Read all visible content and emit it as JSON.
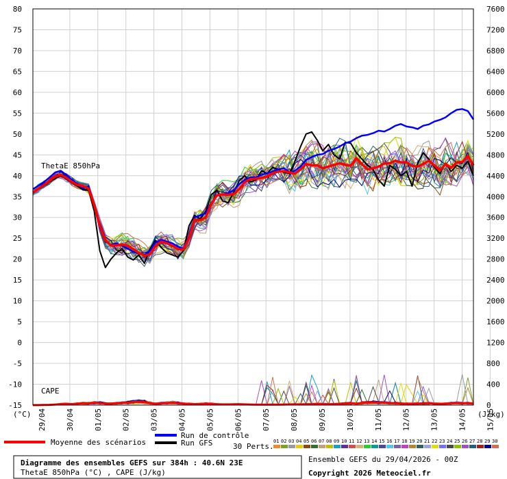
{
  "chart_data": {
    "type": "line",
    "title": "Diagramme des ensembles GEFS sur 384h : 40.6N 23E",
    "subtitle": "ThetaE 850hPa (°C) , CAPE (J/kg)",
    "ensemble_label": "Ensemble GEFS du 29/04/2026 - 00Z",
    "copyright": "Copyright 2026 Meteociel.fr",
    "left_axis": {
      "unit_label": "(°C)",
      "range": [
        -15,
        80
      ],
      "ticks": [
        80,
        75,
        70,
        65,
        60,
        55,
        50,
        45,
        40,
        35,
        30,
        25,
        20,
        15,
        10,
        5,
        0,
        -5,
        -10,
        -15
      ]
    },
    "right_axis": {
      "unit_label": "(J/kg)",
      "range": [
        0,
        7600
      ],
      "ticks": [
        7600,
        7200,
        6800,
        6400,
        6000,
        5600,
        5200,
        4800,
        4400,
        4000,
        3600,
        3200,
        2800,
        2400,
        2000,
        1600,
        1200,
        800,
        400,
        0
      ]
    },
    "x_labels": [
      "29/04",
      "30/04",
      "01/05",
      "02/05",
      "03/05",
      "04/05",
      "05/05",
      "06/05",
      "07/05",
      "08/05",
      "09/05",
      "10/05",
      "11/05",
      "12/05",
      "13/05",
      "14/05",
      "15/05"
    ],
    "x_steps": 65,
    "series_labels": {
      "thetae": "ThetaE 850hPa",
      "cape": "CAPE"
    },
    "legend": {
      "mean": "Moyenne des scénarios",
      "control": "Run de contrôle",
      "gfs": "Run GFS",
      "perts": "30 Perts."
    },
    "colors": {
      "mean": "#ff0000",
      "control": "#0000ff",
      "gfs": "#000000"
    },
    "perturbation_ids": [
      "01",
      "02",
      "03",
      "04",
      "05",
      "06",
      "07",
      "08",
      "09",
      "10",
      "11",
      "12",
      "13",
      "14",
      "15",
      "16",
      "17",
      "18",
      "19",
      "20",
      "21",
      "22",
      "23",
      "24",
      "25",
      "26",
      "27",
      "28",
      "29",
      "30"
    ],
    "perturbation_colors": [
      "#f08a24",
      "#7b9f2a",
      "#9a9a9a",
      "#e8d000",
      "#8a4a14",
      "#2f6f2f",
      "#c4a07a",
      "#c0c000",
      "#16a0c8",
      "#603090",
      "#d05050",
      "#d8b070",
      "#2ad02a",
      "#0a9a9a",
      "#4a4a9a",
      "#50c8e8",
      "#8060a0",
      "#c040c0",
      "#b08830",
      "#306060",
      "#a0a0e0",
      "#e0e000",
      "#7070ff",
      "#4a4a4a",
      "#90c000",
      "#a050c0",
      "#206080",
      "#a02020",
      "#000080",
      "#d07050"
    ],
    "mean_thetae": [
      36,
      36.9,
      37.8,
      38.8,
      39.8,
      40.2,
      39.5,
      38.5,
      37.8,
      37.5,
      36.9,
      33,
      28,
      24.5,
      23.3,
      23.3,
      23.5,
      23.2,
      22.4,
      21.5,
      20.8,
      21.2,
      23.2,
      24.2,
      23.8,
      23.2,
      22.4,
      22.3,
      25,
      29.5,
      29.3,
      30,
      33.2,
      35.3,
      35.5,
      35.4,
      35.6,
      36.8,
      38.5,
      39.2,
      39.3,
      39.5,
      39.8,
      40.6,
      41,
      41.1,
      40.8,
      40.5,
      41.5,
      42.8,
      42.5,
      42.5,
      41.8,
      42.2,
      42.6,
      43,
      42.6,
      42.4,
      44.2,
      42.8,
      41.5,
      41.8,
      42.2,
      42.9,
      43,
      43.6,
      43.2,
      43.2,
      42.4,
      42.2,
      42.8,
      43.6,
      42.5,
      41.3,
      42.8,
      41.9,
      43.2,
      43.3,
      44.7,
      42.5
    ],
    "control_thetae": [
      36.8,
      37.6,
      38.5,
      39.6,
      40.8,
      41.2,
      40.2,
      39,
      38,
      37,
      37.5,
      32.8,
      27.5,
      24.2,
      23.5,
      23.8,
      23.2,
      22.5,
      21.8,
      21.3,
      21,
      22,
      24,
      24.6,
      24.2,
      23.8,
      23,
      22.5,
      25.5,
      30,
      30.5,
      31,
      33.5,
      35.2,
      35.5,
      35.8,
      36.5,
      38,
      39,
      39.6,
      39.6,
      40.2,
      40.6,
      41,
      41.5,
      41.8,
      40.8,
      41.2,
      42.2,
      43.8,
      44.5,
      45,
      45.2,
      46,
      46.4,
      47,
      47.8,
      48.2,
      49,
      49.6,
      49.8,
      50.2,
      50.8,
      50.6,
      51.2,
      52,
      52.4,
      51.8,
      51.6,
      51.2,
      52,
      52.3,
      53,
      53.4,
      54,
      55,
      55.8,
      56,
      55.5,
      53.5
    ],
    "gfs_thetae": [
      36,
      36.8,
      37.6,
      38.5,
      39.3,
      40,
      39.2,
      38.3,
      37.5,
      36.6,
      36.5,
      31.5,
      22,
      18,
      20,
      21.5,
      22.5,
      20.5,
      19.8,
      21,
      19,
      22.5,
      24.5,
      22.8,
      21.5,
      21,
      20.5,
      22,
      28,
      30.5,
      29.6,
      31.5,
      35.5,
      36.5,
      34,
      33.5,
      36,
      38.8,
      40,
      38.5,
      39,
      41.2,
      40.5,
      42,
      41.5,
      40.8,
      40.5,
      43.5,
      47,
      50,
      50.5,
      48.5,
      46,
      47.5,
      45,
      44,
      48,
      47.8,
      45.5,
      44,
      42.5,
      41.5,
      39,
      37.5,
      42.5,
      41.5,
      40,
      41,
      37.5,
      43,
      45.5,
      44,
      42,
      40.5,
      43,
      41,
      42.5,
      41.8,
      43.5,
      40
    ],
    "mean_cape": [
      0,
      0,
      2,
      5,
      12,
      20,
      25,
      18,
      28,
      36,
      32,
      45,
      40,
      30,
      28,
      35,
      40,
      45,
      55,
      62,
      58,
      40,
      25,
      35,
      40,
      45,
      38,
      30,
      25,
      20,
      22,
      28,
      25,
      18,
      15,
      14,
      16,
      18,
      15,
      12,
      11,
      10,
      9,
      12,
      10,
      12,
      15,
      16,
      14,
      18,
      20,
      25,
      22,
      18,
      20,
      25,
      30,
      35,
      28,
      40,
      45,
      50,
      42,
      48,
      38,
      35,
      30,
      28,
      25,
      30,
      32,
      35,
      28,
      25,
      30,
      36,
      40,
      35,
      38,
      30
    ]
  }
}
